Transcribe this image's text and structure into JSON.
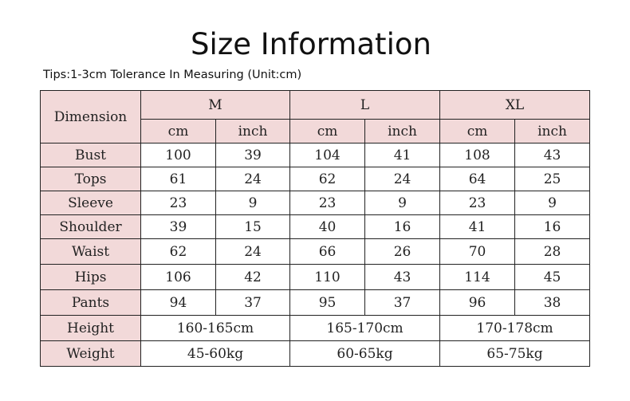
{
  "title": "Size Information",
  "tips": "Tips:1-3cm Tolerance In Measuring (Unit:cm)",
  "table": {
    "dimension_header": "Dimension",
    "sizes": [
      "M",
      "L",
      "XL"
    ],
    "unit_cm": "cm",
    "unit_inch": "inch",
    "rows": [
      {
        "label": "Bust",
        "values": [
          "100",
          "39",
          "104",
          "41",
          "108",
          "43"
        ]
      },
      {
        "label": "Tops",
        "values": [
          "61",
          "24",
          "62",
          "24",
          "64",
          "25"
        ]
      },
      {
        "label": "Sleeve",
        "values": [
          "23",
          "9",
          "23",
          "9",
          "23",
          "9"
        ]
      },
      {
        "label": "Shoulder",
        "values": [
          "39",
          "15",
          "40",
          "16",
          "41",
          "16"
        ]
      },
      {
        "label": "Waist",
        "values": [
          "62",
          "24",
          "66",
          "26",
          "70",
          "28"
        ]
      },
      {
        "label": "Hips",
        "values": [
          "106",
          "42",
          "110",
          "43",
          "114",
          "45"
        ]
      },
      {
        "label": "Pants",
        "values": [
          "94",
          "37",
          "95",
          "37",
          "96",
          "38"
        ]
      }
    ],
    "height": {
      "label": "Height",
      "values": [
        "160-165cm",
        "165-170cm",
        "170-178cm"
      ]
    },
    "weight": {
      "label": "Weight",
      "values": [
        "45-60kg",
        "60-65kg",
        "65-75kg"
      ]
    }
  }
}
